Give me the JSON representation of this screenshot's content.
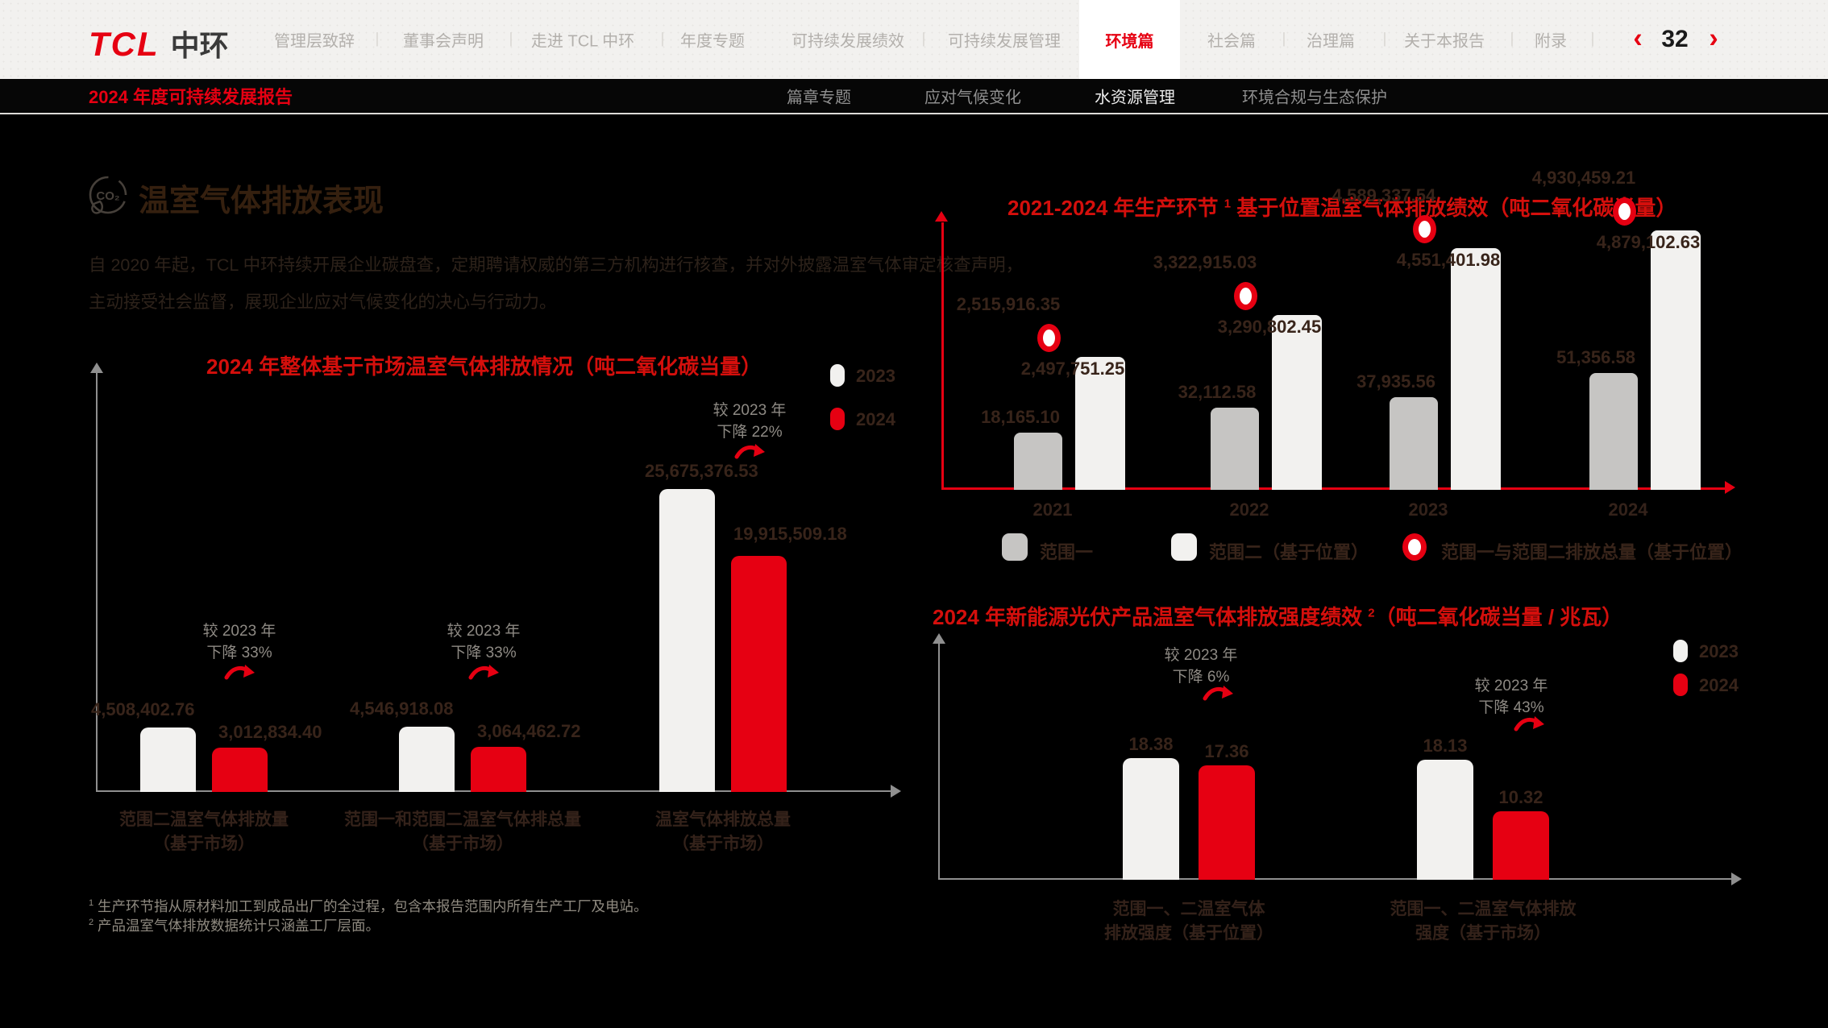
{
  "topbar": {
    "logo_tcl": "TCL",
    "logo_zhonghuan": "中环",
    "nav_items": [
      {
        "label": "管理层致辞",
        "active": false
      },
      {
        "label": "董事会声明",
        "active": false
      },
      {
        "label": "走进 TCL 中环",
        "active": false
      },
      {
        "label": "年度专题",
        "active": false
      },
      {
        "label": "可持续发展绩效",
        "active": false
      },
      {
        "label": "可持续发展管理",
        "active": false
      },
      {
        "label": "环境篇",
        "active": true
      },
      {
        "label": "社会篇",
        "active": false
      },
      {
        "label": "治理篇",
        "active": false
      },
      {
        "label": "关于本报告",
        "active": false
      },
      {
        "label": "附录",
        "active": false
      }
    ],
    "prev_icon": "‹",
    "next_icon": "›",
    "page_number": "32"
  },
  "subbar": {
    "report_title": "2024 年度可持续发展报告",
    "items": [
      {
        "label": "篇章专题",
        "active": false
      },
      {
        "label": "应对气候变化",
        "active": false
      },
      {
        "label": "水资源管理",
        "active": true
      },
      {
        "label": "环境合规与生态保护",
        "active": false
      }
    ]
  },
  "section": {
    "title": "温室气体排放表现",
    "icon": "co2-leaf-icon",
    "paragraph_line1": "自 2020 年起，TCL 中环持续开展企业碳盘查，定期聘请权威的第三方机构进行核查，并对外披露温室气体审定核查声明，",
    "paragraph_line2": "主动接受社会监督，展现企业应对气候变化的决心与行动力。"
  },
  "chart_data": [
    {
      "id": "market-based-ghg-2024",
      "type": "bar",
      "title": "2024 年整体基于市场温室气体排放情况（吨二氧化碳当量）",
      "legend": [
        {
          "name": "2023",
          "color": "#f2f1ef"
        },
        {
          "name": "2024",
          "color": "#e60012"
        }
      ],
      "categories": [
        [
          "范围二温室气体排放量",
          "（基于市场）"
        ],
        [
          "范围一和范围二温室气体排总量",
          "（基于市场）"
        ],
        [
          "温室气体排放总量",
          "（基于市场）"
        ]
      ],
      "series": [
        {
          "name": "2023",
          "values": [
            4508402.76,
            4546918.08,
            25675376.53
          ],
          "labels": [
            "4,508,402.76",
            "4,546,918.08",
            "25,675,376.53"
          ]
        },
        {
          "name": "2024",
          "values": [
            3012834.4,
            3064462.72,
            19915509.18
          ],
          "labels": [
            "3,012,834.40",
            "3,064,462.72",
            "19,915,509.18"
          ]
        }
      ],
      "change_notes": [
        [
          "较 2023 年",
          "下降 33%"
        ],
        [
          "较 2023 年",
          "下降 33%"
        ],
        [
          "较 2023 年",
          "下降 22%"
        ]
      ],
      "ylim": [
        0,
        26000000
      ],
      "grid": false,
      "legend_position": "top-right"
    },
    {
      "id": "production-location-based-ghg-2021-2024",
      "type": "bar",
      "title_prefix": "2021-2024 年生产环节",
      "title_sup": "1",
      "title_suffix": "基于位置温室气体排放绩效（吨二氧化碳当量）",
      "categories": [
        "2021",
        "2022",
        "2023",
        "2024"
      ],
      "series": [
        {
          "name": "范围一",
          "color": "#c6c5c3",
          "values": [
            18165.1,
            32112.58,
            37935.56,
            51356.58
          ],
          "labels": [
            "18,165.10",
            "32,112.58",
            "37,935.56",
            "51,356.58"
          ]
        },
        {
          "name": "范围二（基于位置）",
          "color": "#f2f1ef",
          "values": [
            2497751.25,
            3290802.45,
            4551401.98,
            4879102.63
          ],
          "labels": [
            "2,497,751.25",
            "3,290,802.45",
            "4,551,401.98",
            "4,879,102.63"
          ]
        },
        {
          "name": "范围一与范围二排放总量（基于位置）",
          "marker": "ring",
          "color": "#e60012",
          "values": [
            2515916.35,
            3322915.03,
            4589337.54,
            4930459.21
          ],
          "labels": [
            "2,515,916.35",
            "3,322,915.03",
            "4,589,337.54",
            "4,930,459.21"
          ]
        }
      ],
      "ylim": [
        0,
        5300000
      ],
      "grid": false,
      "legend_position": "bottom"
    },
    {
      "id": "pv-product-ghg-intensity-2024",
      "type": "bar",
      "title_prefix": "2024 年新能源光伏产品温室气体排放强度绩效",
      "title_sup": "2",
      "title_suffix": "（吨二氧化碳当量 / 兆瓦）",
      "legend": [
        {
          "name": "2023",
          "color": "#f2f1ef"
        },
        {
          "name": "2024",
          "color": "#e60012"
        }
      ],
      "categories": [
        [
          "范围一、二温室气体",
          "排放强度（基于位置）"
        ],
        [
          "范围一、二温室气体排放",
          "强度（基于市场）"
        ]
      ],
      "series": [
        {
          "name": "2023",
          "values": [
            18.38,
            18.13
          ],
          "labels": [
            "18.38",
            "18.13"
          ]
        },
        {
          "name": "2024",
          "values": [
            17.36,
            10.32
          ],
          "labels": [
            "17.36",
            "10.32"
          ]
        }
      ],
      "change_notes": [
        [
          "较 2023 年",
          "下降 6%"
        ],
        [
          "较 2023 年",
          "下降 43%"
        ]
      ],
      "ylim": [
        0,
        20
      ],
      "grid": false,
      "legend_position": "top-right"
    }
  ],
  "footnotes": [
    {
      "sup": "1",
      "text": "生产环节指从原材料加工到成品出厂的全过程，包含本报告范围内所有生产工厂及电站。"
    },
    {
      "sup": "2",
      "text": "产品温室气体排放数据统计只涵盖工厂层面。"
    }
  ],
  "colors": {
    "accent_red": "#e60012",
    "title_red": "#d40f0c",
    "bar_white": "#f2f1ef",
    "bar_gray": "#c6c5c3",
    "label_brown": "#38241a",
    "note_gray": "#8e8a84"
  }
}
